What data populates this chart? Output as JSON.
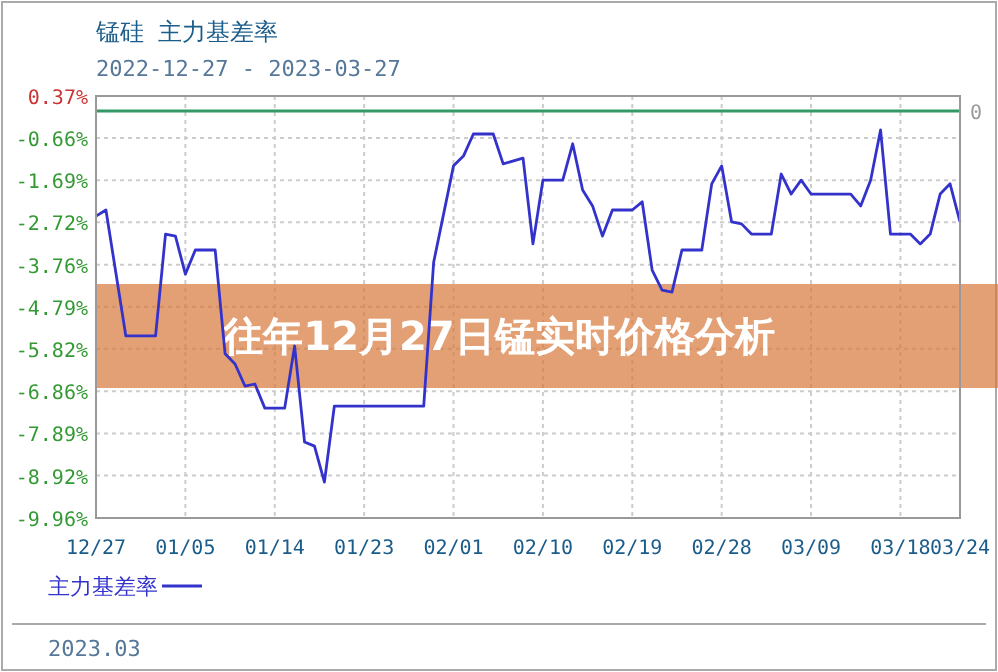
{
  "chart_data": {
    "type": "line",
    "title": "锰硅  主力基差率",
    "subtitle": "2022-12-27 - 2023-03-27",
    "annotations": [
      "往年12月27日锰实时价格分析",
      "2023.03"
    ],
    "x": [
      "2022-12-27",
      "2022-12-28",
      "2022-12-30",
      "2023-01-02",
      "2023-01-03",
      "2023-01-04",
      "2023-01-05",
      "2023-01-06",
      "2023-01-08",
      "2023-01-09",
      "2023-01-10",
      "2023-01-11",
      "2023-01-12",
      "2023-01-13",
      "2023-01-15",
      "2023-01-16",
      "2023-01-17",
      "2023-01-18",
      "2023-01-19",
      "2023-01-20",
      "2023-01-29",
      "2023-01-30",
      "2023-02-01",
      "2023-02-02",
      "2023-02-03",
      "2023-02-05",
      "2023-02-06",
      "2023-02-08",
      "2023-02-09",
      "2023-02-10",
      "2023-02-12",
      "2023-02-13",
      "2023-02-14",
      "2023-02-15",
      "2023-02-16",
      "2023-02-17",
      "2023-02-19",
      "2023-02-20",
      "2023-02-21",
      "2023-02-22",
      "2023-02-23",
      "2023-02-24",
      "2023-02-26",
      "2023-02-27",
      "2023-02-28",
      "2023-03-01",
      "2023-03-02",
      "2023-03-03",
      "2023-03-05",
      "2023-03-06",
      "2023-03-07",
      "2023-03-08",
      "2023-03-09",
      "2023-03-13",
      "2023-03-14",
      "2023-03-15",
      "2023-03-16",
      "2023-03-17",
      "2023-03-19",
      "2023-03-20",
      "2023-03-21",
      "2023-03-22",
      "2023-03-23",
      "2023-03-24"
    ],
    "series": [
      {
        "name": "主力基差率",
        "color": "#3333cc",
        "values": [
          -2.57,
          -2.42,
          -5.5,
          -5.5,
          -3.01,
          -3.06,
          -3.99,
          -3.4,
          -3.4,
          -5.94,
          -6.19,
          -6.73,
          -6.68,
          -7.27,
          -7.27,
          -5.75,
          -8.1,
          -8.2,
          -9.08,
          -7.22,
          -7.22,
          -3.7,
          -1.34,
          -1.1,
          -0.56,
          -0.56,
          -1.29,
          -1.15,
          -3.25,
          -1.69,
          -1.69,
          -0.8,
          -1.93,
          -2.32,
          -3.06,
          -2.42,
          -2.42,
          -2.22,
          -3.89,
          -4.38,
          -4.43,
          -3.4,
          -3.4,
          -1.78,
          -1.34,
          -2.71,
          -2.76,
          -3.01,
          -3.01,
          -1.54,
          -2.03,
          -1.69,
          -2.03,
          -2.03,
          -2.32,
          -1.69,
          -0.46,
          -3.01,
          -3.01,
          -3.25,
          -3.01,
          -2.03,
          -1.78,
          -2.71
        ]
      }
    ],
    "xlim": [
      "2022-12-27",
      "2023-03-24"
    ],
    "xticks": [
      {
        "value": "2022-12-27",
        "label": "12/27"
      },
      {
        "value": "2023-01-05",
        "label": "01/05"
      },
      {
        "value": "2023-01-14",
        "label": "01/14"
      },
      {
        "value": "2023-01-23",
        "label": "01/23"
      },
      {
        "value": "2023-02-01",
        "label": "02/01"
      },
      {
        "value": "2023-02-10",
        "label": "02/10"
      },
      {
        "value": "2023-02-19",
        "label": "02/19"
      },
      {
        "value": "2023-02-28",
        "label": "02/28"
      },
      {
        "value": "2023-03-09",
        "label": "03/09"
      },
      {
        "value": "2023-03-18",
        "label": "03/18"
      },
      {
        "value": "2023-03-24",
        "label": "03/24"
      }
    ],
    "ylim": [
      -9.96,
      0.37
    ],
    "yticks": [
      {
        "value": 0.37,
        "label": "0.37%"
      },
      {
        "value": -0.66,
        "label": "-0.66%"
      },
      {
        "value": -1.69,
        "label": "-1.69%"
      },
      {
        "value": -2.72,
        "label": "-2.72%"
      },
      {
        "value": -3.76,
        "label": "-3.76%"
      },
      {
        "value": -4.79,
        "label": "-4.79%"
      },
      {
        "value": -5.82,
        "label": "-5.82%"
      },
      {
        "value": -6.86,
        "label": "-6.86%"
      },
      {
        "value": -7.89,
        "label": "-7.89%"
      },
      {
        "value": -8.92,
        "label": "-8.92%"
      },
      {
        "value": -9.96,
        "label": "-9.96%"
      }
    ],
    "ref_lines": [
      {
        "axis": "y",
        "value": 0,
        "label": "0",
        "color": "#339966"
      }
    ],
    "grid": true,
    "legend": "bottom left",
    "marker": "none",
    "line_style": "solid"
  }
}
